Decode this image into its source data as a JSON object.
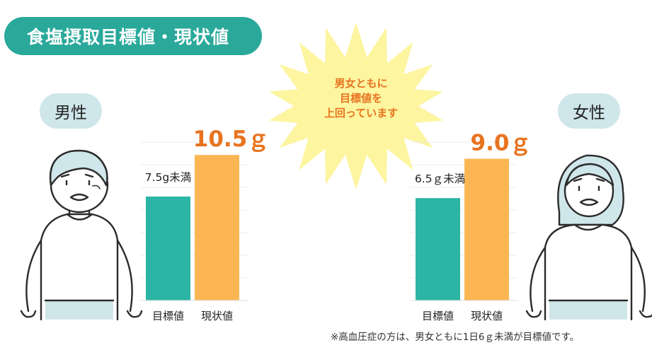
{
  "title": "食塩摂取目標値・現状値",
  "starburst_text": [
    "男女ともに",
    "目標値を",
    "上回っています"
  ],
  "footnote": "※高血圧症の方は、男女ともに1日6ｇ未満が目標値です。",
  "colors": {
    "target": "#2bb5a4",
    "current": "#fbb653",
    "title_bg": "#2aa99b",
    "highlight": "#e8731f",
    "burst": "#fdf5a0"
  },
  "chart_data": [
    {
      "type": "bar",
      "title": "男性",
      "categories": [
        "目標値",
        "現状値"
      ],
      "values": [
        7.5,
        10.5
      ],
      "value_labels": [
        "7.5g未満",
        "10.5ｇ"
      ],
      "ylim": [
        0,
        12.5
      ]
    },
    {
      "type": "bar",
      "title": "女性",
      "categories": [
        "目標値",
        "現状値"
      ],
      "values": [
        6.5,
        9.0
      ],
      "value_labels": [
        "6.5ｇ未満",
        "9.0ｇ"
      ],
      "ylim": [
        0,
        11
      ]
    }
  ]
}
